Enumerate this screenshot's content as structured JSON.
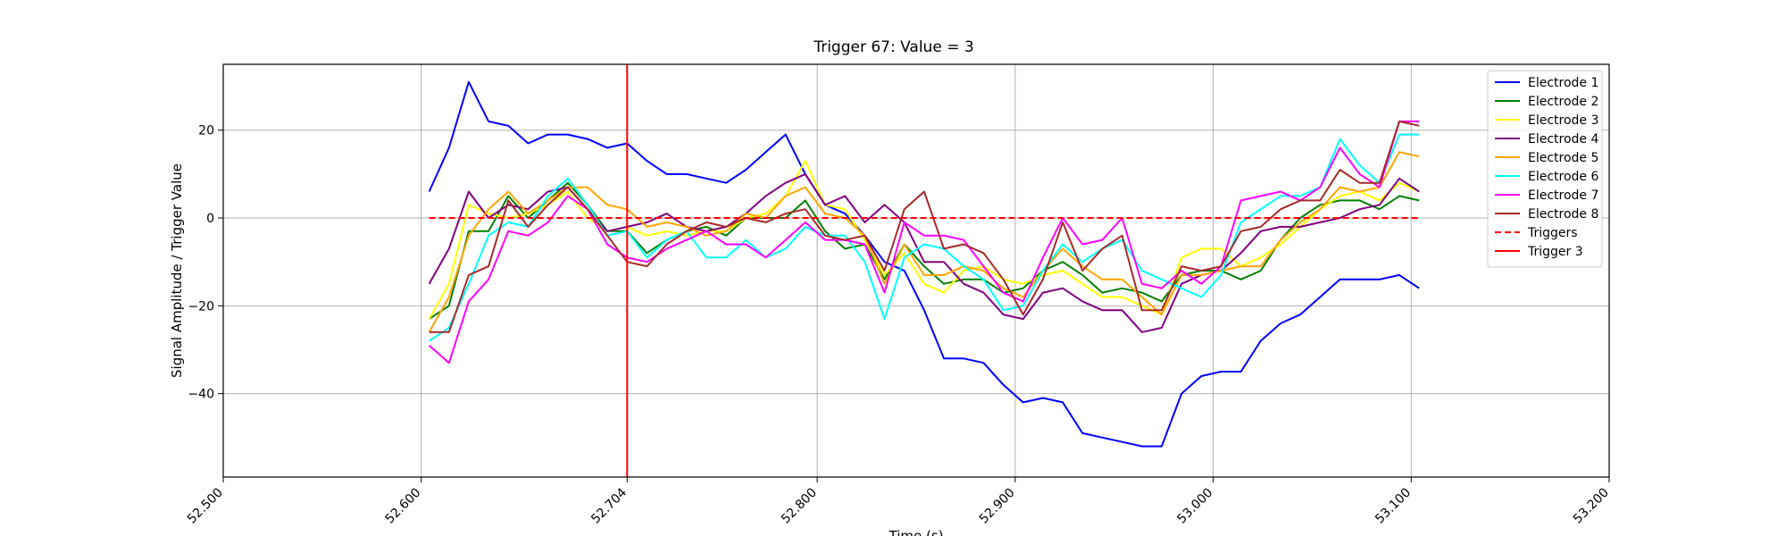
{
  "chart_data": {
    "type": "line",
    "title": "Trigger 67: Value = 3",
    "xlabel": "Time (s)",
    "ylabel": "Signal Amplitude / Trigger Value",
    "xlim": [
      52.5,
      53.2
    ],
    "ylim": [
      -59,
      35
    ],
    "xticks": [
      52.5,
      52.6,
      52.704,
      52.8,
      52.9,
      53.0,
      53.1,
      53.2
    ],
    "xtick_labels": [
      "52.500",
      "52.600",
      "52.704",
      "52.800",
      "52.900",
      "53.000",
      "53.100",
      "53.200"
    ],
    "yticks": [
      -40,
      -20,
      0,
      20
    ],
    "ytick_labels": [
      "−40",
      "−20",
      "0",
      "20"
    ],
    "grid": true,
    "legend_position": "top-right",
    "x": [
      52.604,
      52.614,
      52.624,
      52.634,
      52.644,
      52.654,
      52.664,
      52.674,
      52.684,
      52.694,
      52.704,
      52.714,
      52.724,
      52.734,
      52.744,
      52.754,
      52.764,
      52.774,
      52.784,
      52.794,
      52.804,
      52.814,
      52.824,
      52.834,
      52.844,
      52.854,
      52.864,
      52.874,
      52.884,
      52.894,
      52.904,
      52.914,
      52.924,
      52.934,
      52.944,
      52.954,
      52.964,
      52.974,
      52.984,
      52.994,
      53.004,
      53.014,
      53.024,
      53.034,
      53.044,
      53.054,
      53.064,
      53.074,
      53.084,
      53.094,
      53.104
    ],
    "series": [
      {
        "name": "Electrode 1",
        "color": "#0000ff",
        "values": [
          6,
          16,
          31,
          22,
          21,
          17,
          19,
          19,
          18,
          16,
          17,
          13,
          10,
          10,
          9,
          8,
          11,
          15,
          19,
          10,
          3,
          1,
          -4,
          -10,
          -12,
          -21,
          -32,
          -32,
          -33,
          -38,
          -42,
          -41,
          -42,
          -49,
          -50,
          -51,
          -52,
          -52,
          -40,
          -36,
          -35,
          -35,
          -28,
          -24,
          -22,
          -18,
          -14,
          -14,
          -14,
          -13,
          -16
        ]
      },
      {
        "name": "Electrode 2",
        "color": "#008000",
        "values": [
          -23,
          -20,
          -3,
          -3,
          5,
          0,
          4,
          8,
          3,
          -3,
          -3,
          -8,
          -5,
          -3,
          -2,
          -4,
          0,
          0,
          0,
          4,
          -3,
          -7,
          -6,
          -14,
          -6,
          -11,
          -15,
          -14,
          -14,
          -17,
          -16,
          -12,
          -10,
          -13,
          -17,
          -16,
          -17,
          -19,
          -13,
          -12,
          -12,
          -14,
          -12,
          -5,
          0,
          3,
          4,
          4,
          2,
          5,
          4
        ]
      },
      {
        "name": "Electrode 3",
        "color": "#ffff00",
        "values": [
          -23,
          -15,
          3,
          1,
          0,
          1,
          3,
          6,
          0,
          -3,
          -2,
          -4,
          -3,
          -4,
          -3,
          -3,
          0,
          1,
          5,
          13,
          3,
          2,
          -5,
          -13,
          -8,
          -15,
          -17,
          -12,
          -11,
          -14,
          -15,
          -13,
          -12,
          -15,
          -18,
          -18,
          -20,
          -22,
          -9,
          -7,
          -7,
          -11,
          -9,
          -6,
          -2,
          2,
          5,
          6,
          4,
          8,
          6
        ]
      },
      {
        "name": "Electrode 4",
        "color": "#800080",
        "values": [
          -15,
          -7,
          6,
          0,
          3,
          2,
          6,
          7,
          2,
          -3,
          -2,
          -1,
          1,
          -2,
          -3,
          -2,
          1,
          5,
          8,
          10,
          3,
          5,
          -1,
          3,
          -1,
          -10,
          -10,
          -15,
          -17,
          -22,
          -23,
          -17,
          -16,
          -19,
          -21,
          -21,
          -26,
          -25,
          -15,
          -13,
          -12,
          -8,
          -3,
          -2,
          -2,
          -1,
          0,
          2,
          3,
          9,
          6
        ]
      },
      {
        "name": "Electrode 5",
        "color": "#ffa500",
        "values": [
          -26,
          -18,
          -4,
          2,
          6,
          1,
          4,
          7,
          7,
          3,
          2,
          -2,
          -1,
          -2,
          -4,
          -3,
          1,
          0,
          5,
          7,
          1,
          0,
          -4,
          -15,
          -6,
          -13,
          -13,
          -11,
          -12,
          -16,
          -18,
          -12,
          -7,
          -11,
          -14,
          -14,
          -18,
          -22,
          -13,
          -13,
          -12,
          -11,
          -11,
          -5,
          -1,
          2,
          7,
          6,
          7,
          15,
          14
        ]
      },
      {
        "name": "Electrode 6",
        "color": "#00ffff",
        "values": [
          -28,
          -25,
          -15,
          -4,
          -1,
          -2,
          5,
          9,
          3,
          -4,
          -3,
          -9,
          -5,
          -3,
          -9,
          -9,
          -5,
          -9,
          -7,
          -2,
          -4,
          -4,
          -10,
          -23,
          -9,
          -6,
          -7,
          -11,
          -14,
          -21,
          -20,
          -12,
          -6,
          -10,
          -7,
          -5,
          -12,
          -14,
          -16,
          -18,
          -13,
          -1,
          2,
          5,
          5,
          7,
          18,
          12,
          8,
          19,
          19
        ]
      },
      {
        "name": "Electrode 7",
        "color": "#ff00ff",
        "values": [
          -29,
          -33,
          -19,
          -14,
          -3,
          -4,
          -1,
          5,
          2,
          -6,
          -9,
          -10,
          -7,
          -5,
          -3,
          -6,
          -6,
          -9,
          -5,
          -1,
          -5,
          -5,
          -6,
          -17,
          -1,
          -4,
          -4,
          -5,
          -11,
          -17,
          -19,
          -9,
          0,
          -6,
          -5,
          0,
          -15,
          -16,
          -12,
          -15,
          -11,
          4,
          5,
          6,
          4,
          7,
          16,
          10,
          7,
          22,
          22
        ]
      },
      {
        "name": "Electrode 8",
        "color": "#a52a2a",
        "values": [
          -26,
          -26,
          -13,
          -11,
          4,
          -2,
          3,
          7,
          2,
          -4,
          -10,
          -11,
          -6,
          -3,
          -1,
          -2,
          0,
          -1,
          1,
          2,
          -4,
          -5,
          -4,
          -12,
          2,
          6,
          -7,
          -6,
          -8,
          -14,
          -22,
          -14,
          -1,
          -12,
          -7,
          -4,
          -21,
          -21,
          -11,
          -12,
          -11,
          -3,
          -2,
          2,
          4,
          4,
          11,
          8,
          8,
          22,
          21
        ]
      }
    ],
    "triggers": {
      "name": "Triggers",
      "color": "#ff0000",
      "y": 0,
      "x_start": 52.604,
      "x_end": 53.104
    },
    "trigger_line": {
      "name": "Trigger 3",
      "color": "#ff0000",
      "x": 52.704
    }
  }
}
